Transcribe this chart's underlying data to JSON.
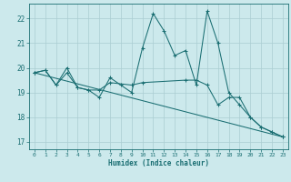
{
  "xlabel": "Humidex (Indice chaleur)",
  "background_color": "#cce9ec",
  "grid_color": "#aacdd2",
  "line_color": "#1a6e72",
  "xlim": [
    -0.5,
    23.5
  ],
  "ylim": [
    16.7,
    22.6
  ],
  "yticks": [
    17,
    18,
    19,
    20,
    21,
    22
  ],
  "xticks": [
    0,
    1,
    2,
    3,
    4,
    5,
    6,
    7,
    8,
    9,
    10,
    11,
    12,
    13,
    14,
    15,
    16,
    17,
    18,
    19,
    20,
    21,
    22,
    23
  ],
  "series": [
    {
      "x": [
        0,
        1,
        2,
        3,
        4,
        5,
        6,
        7,
        8,
        9,
        10,
        11,
        12,
        13,
        14,
        15,
        16,
        17,
        18,
        19,
        20,
        21,
        22,
        23
      ],
      "y": [
        19.8,
        19.9,
        19.3,
        19.8,
        19.2,
        19.1,
        18.8,
        19.6,
        19.3,
        19.0,
        20.8,
        22.2,
        21.5,
        20.5,
        20.7,
        19.3,
        22.3,
        21.0,
        19.0,
        18.5,
        18.0,
        17.6,
        17.4,
        17.2
      ]
    },
    {
      "x": [
        0,
        1,
        2,
        3,
        4,
        5,
        6,
        7,
        9,
        10,
        14,
        15,
        16,
        17,
        18,
        19,
        20,
        21,
        22,
        23
      ],
      "y": [
        19.8,
        19.9,
        19.3,
        20.0,
        19.2,
        19.1,
        19.1,
        19.4,
        19.3,
        19.4,
        19.5,
        19.5,
        19.3,
        18.5,
        18.8,
        18.8,
        18.0,
        17.6,
        17.4,
        17.2
      ]
    },
    {
      "x": [
        0,
        23
      ],
      "y": [
        19.8,
        17.2
      ]
    }
  ]
}
